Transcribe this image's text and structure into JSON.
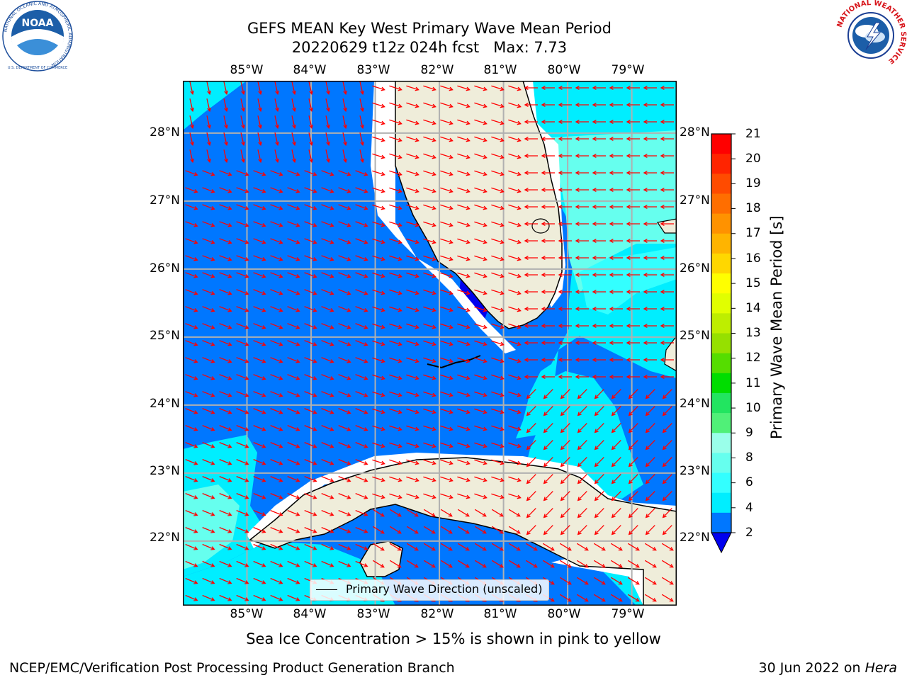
{
  "header": {
    "title_line1": "GEFS MEAN Key West Primary Wave Mean Period",
    "title_line2": "20220629 t12z 024h fcst   Max: 7.73"
  },
  "logos": {
    "noaa_text": "NOAA",
    "noaa_ring": "NATIONAL OCEANIC AND ATMOSPHERIC ADMINISTRATION",
    "noaa_ring_bottom": "U.S. DEPARTMENT OF COMMERCE",
    "nws_ring": "NATIONAL WEATHER SERVICE"
  },
  "map": {
    "lon_labels": [
      "85°W",
      "84°W",
      "83°W",
      "82°W",
      "81°W",
      "80°W",
      "79°W"
    ],
    "lon_values": [
      -85,
      -84,
      -83,
      -82,
      -81,
      -80,
      -79
    ],
    "lat_labels": [
      "28°N",
      "27°N",
      "26°N",
      "25°N",
      "24°N",
      "23°N",
      "22°N"
    ],
    "lat_values": [
      28,
      27,
      26,
      25,
      24,
      23,
      22
    ],
    "lon_range": [
      -86,
      -78.3
    ],
    "lat_range": [
      21.05,
      28.77
    ],
    "arrow_color": "#ff0000",
    "land_color": "#efedda",
    "legend_label": "Primary Wave Direction (unscaled)"
  },
  "colorbar": {
    "label": "Primary Wave Mean Period [s]",
    "ticks": [
      "21",
      "20",
      "19",
      "18",
      "17",
      "16",
      "15",
      "14",
      "13",
      "12",
      "11",
      "10",
      "9",
      "8",
      "6",
      "4",
      "2"
    ],
    "colors": [
      "#ff0000",
      "#ff2400",
      "#ff4b00",
      "#ff6e00",
      "#ff9200",
      "#ffb400",
      "#ffd700",
      "#ffff00",
      "#e1ff00",
      "#beee00",
      "#96e000",
      "#55dd00",
      "#00dd00",
      "#22e560",
      "#50f078",
      "#9affea",
      "#66ffee",
      "#33ffff",
      "#00eeff",
      "#0077ff"
    ],
    "under_color": "#0000ee"
  },
  "footer": {
    "subtitle": "Sea Ice Concentration > 15% is shown in pink to yellow",
    "credit": "NCEP/EMC/Verification Post Processing Product Generation Branch",
    "date": "30 Jun 2022 on ",
    "host": "Hera"
  }
}
